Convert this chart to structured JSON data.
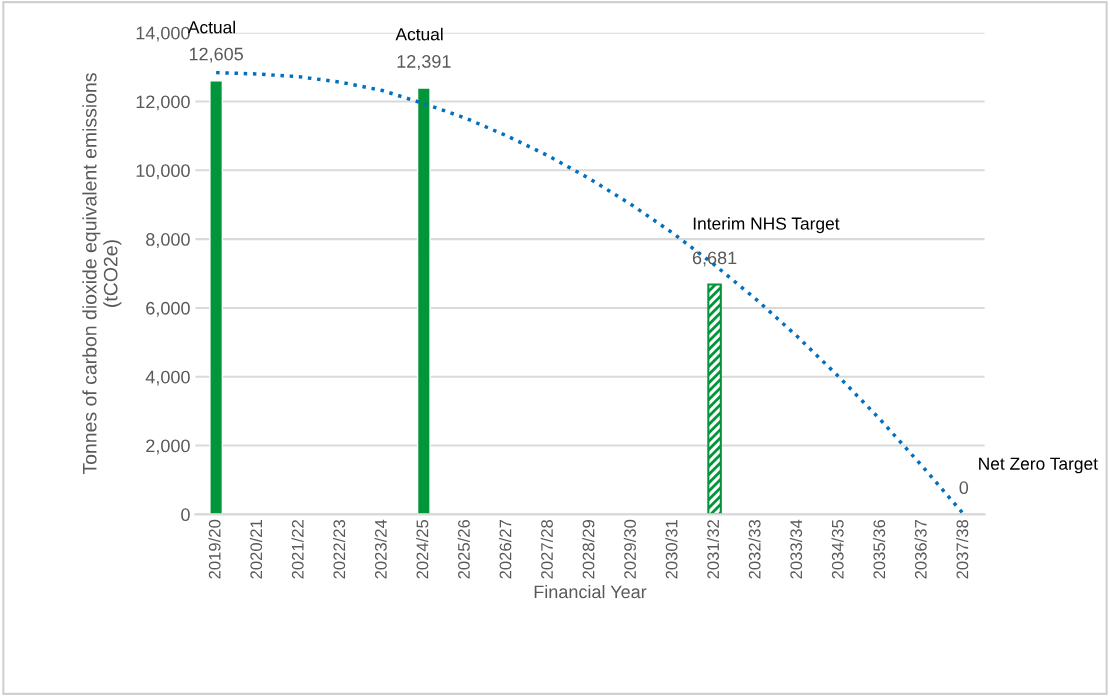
{
  "chart_data": {
    "type": "bar",
    "xlabel": "Financial Year",
    "ylabel": "Tonnes of carbon dioxide equivalent emissions\n(tCO2e)",
    "categories": [
      "2019/20",
      "2020/21",
      "2021/22",
      "2022/23",
      "2023/24",
      "2024/25",
      "2025/26",
      "2026/27",
      "2027/28",
      "2028/29",
      "2029/30",
      "2030/31",
      "2031/32",
      "2032/33",
      "2033/34",
      "2034/35",
      "2035/36",
      "2036/37",
      "2037/38"
    ],
    "series": [
      {
        "color": "#009639",
        "values": [
          12605,
          null,
          null,
          null,
          null,
          12391,
          null,
          null,
          null,
          null,
          null,
          null,
          null,
          null,
          null,
          null,
          null,
          null,
          null
        ],
        "value_labels": [
          "12,605",
          null,
          null,
          null,
          null,
          "12,391",
          null,
          null,
          null,
          null,
          null,
          null,
          null,
          null,
          null,
          null,
          null,
          null,
          null
        ]
      },
      {
        "color": "#009639",
        "values": [
          null,
          null,
          null,
          null,
          null,
          null,
          null,
          null,
          null,
          null,
          null,
          null,
          6681,
          null,
          null,
          null,
          null,
          null,
          null
        ],
        "value_labels": [
          null,
          null,
          null,
          null,
          null,
          null,
          null,
          null,
          null,
          null,
          null,
          null,
          "6,681",
          null,
          null,
          null,
          null,
          null,
          null
        ]
      },
      {
        "type": "line",
        "color": "#0070c0",
        "line_style": "dotted",
        "values": [
          12840,
          12800,
          12720,
          12560,
          12320,
          11940,
          11520,
          11000,
          10420,
          9750,
          9000,
          8170,
          7250,
          6250,
          5160,
          3990,
          2740,
          1400,
          0
        ],
        "value_labels": [
          null,
          null,
          null,
          null,
          null,
          null,
          null,
          null,
          null,
          null,
          null,
          null,
          null,
          null,
          null,
          null,
          null,
          null,
          "0"
        ]
      }
    ],
    "ylim": [
      0,
      14000
    ],
    "yticks": [
      {
        "value": 0,
        "label": "0"
      },
      {
        "value": 2000,
        "label": "2,000"
      },
      {
        "value": 4000,
        "label": "4,000"
      },
      {
        "value": 6000,
        "label": "6,000"
      },
      {
        "value": 8000,
        "label": "8,000"
      },
      {
        "value": 10000,
        "label": "10,000"
      },
      {
        "value": 12000,
        "label": "12,000"
      },
      {
        "value": 14000,
        "label": "14,000"
      }
    ],
    "grid": "y",
    "legend": false,
    "annotations": [
      "Actual",
      "Actual",
      "Interim NHS Target",
      "Net Zero Target"
    ]
  }
}
